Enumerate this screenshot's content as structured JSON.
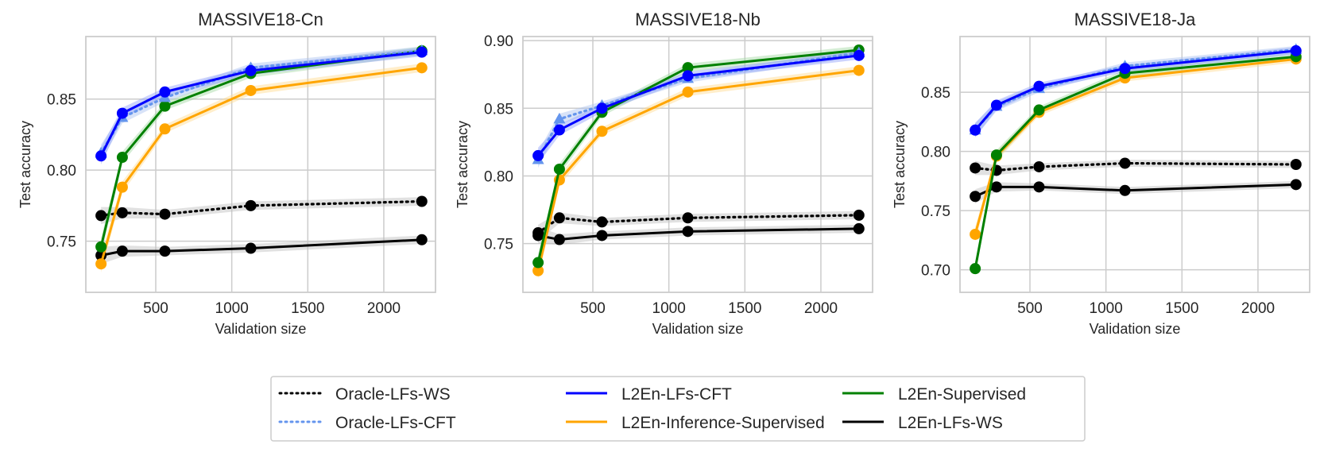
{
  "chart_data": [
    {
      "type": "line",
      "title": "MASSIVE18-Cn",
      "xlabel": "Validation size",
      "ylabel": "Test accuracy",
      "xlim": [
        40,
        2340
      ],
      "ylim": [
        0.714,
        0.894
      ],
      "xticks": [
        500,
        1000,
        1500,
        2000
      ],
      "yticks": [
        0.75,
        0.8,
        0.85
      ],
      "ytick_labels": [
        "0.75",
        "0.80",
        "0.85"
      ],
      "x": [
        140,
        280,
        560,
        1125,
        2250
      ],
      "series": [
        {
          "name": "Oracle-LFs-WS",
          "values": [
            0.768,
            0.77,
            0.769,
            0.775,
            0.778
          ]
        },
        {
          "name": "Oracle-LFs-CFT",
          "values": [
            0.812,
            0.837,
            0.851,
            0.872,
            0.884
          ]
        },
        {
          "name": "L2En-LFs-CFT",
          "values": [
            0.81,
            0.84,
            0.855,
            0.87,
            0.883
          ]
        },
        {
          "name": "L2En-Inference-Supervised",
          "values": [
            0.734,
            0.788,
            0.829,
            0.856,
            0.872
          ]
        },
        {
          "name": "L2En-Supervised",
          "values": [
            0.746,
            0.809,
            0.845,
            0.868,
            0.884
          ]
        },
        {
          "name": "L2En-LFs-WS",
          "values": [
            0.74,
            0.743,
            0.743,
            0.745,
            0.751
          ]
        }
      ]
    },
    {
      "type": "line",
      "title": "MASSIVE18-Nb",
      "xlabel": "Validation size",
      "ylabel": "Test accuracy",
      "xlim": [
        40,
        2340
      ],
      "ylim": [
        0.714,
        0.903
      ],
      "xticks": [
        500,
        1000,
        1500,
        2000
      ],
      "yticks": [
        0.75,
        0.8,
        0.85,
        0.9
      ],
      "ytick_labels": [
        "0.75",
        "0.80",
        "0.85",
        "0.90"
      ],
      "x": [
        140,
        280,
        560,
        1125,
        2250
      ],
      "series": [
        {
          "name": "Oracle-LFs-WS",
          "values": [
            0.758,
            0.769,
            0.766,
            0.769,
            0.771
          ]
        },
        {
          "name": "Oracle-LFs-CFT",
          "values": [
            0.812,
            0.842,
            0.852,
            0.872,
            0.891
          ]
        },
        {
          "name": "L2En-LFs-CFT",
          "values": [
            0.815,
            0.834,
            0.85,
            0.874,
            0.889
          ]
        },
        {
          "name": "L2En-Inference-Supervised",
          "values": [
            0.73,
            0.797,
            0.833,
            0.862,
            0.878
          ]
        },
        {
          "name": "L2En-Supervised",
          "values": [
            0.736,
            0.805,
            0.847,
            0.88,
            0.893
          ]
        },
        {
          "name": "L2En-LFs-WS",
          "values": [
            0.756,
            0.753,
            0.756,
            0.759,
            0.761
          ]
        }
      ]
    },
    {
      "type": "line",
      "title": "MASSIVE18-Ja",
      "xlabel": "Validation size",
      "ylabel": "Test accuracy",
      "xlim": [
        40,
        2340
      ],
      "ylim": [
        0.681,
        0.897
      ],
      "xticks": [
        500,
        1000,
        1500,
        2000
      ],
      "yticks": [
        0.7,
        0.75,
        0.8,
        0.85
      ],
      "ytick_labels": [
        "0.70",
        "0.75",
        "0.80",
        "0.85"
      ],
      "x": [
        140,
        280,
        560,
        1125,
        2250
      ],
      "series": [
        {
          "name": "Oracle-LFs-WS",
          "values": [
            0.786,
            0.784,
            0.787,
            0.79,
            0.789
          ]
        },
        {
          "name": "Oracle-LFs-CFT",
          "values": [
            0.818,
            0.838,
            0.853,
            0.872,
            0.886
          ]
        },
        {
          "name": "L2En-LFs-CFT",
          "values": [
            0.818,
            0.839,
            0.855,
            0.87,
            0.885
          ]
        },
        {
          "name": "L2En-Inference-Supervised",
          "values": [
            0.73,
            0.796,
            0.833,
            0.862,
            0.878
          ]
        },
        {
          "name": "L2En-Supervised",
          "values": [
            0.701,
            0.797,
            0.835,
            0.866,
            0.88
          ]
        },
        {
          "name": "L2En-LFs-WS",
          "values": [
            0.762,
            0.77,
            0.77,
            0.767,
            0.772
          ]
        }
      ]
    }
  ],
  "legend": {
    "location": "bottom-center",
    "entries": [
      {
        "name": "Oracle-LFs-WS",
        "color": "#000000",
        "style": "dotted"
      },
      {
        "name": "Oracle-LFs-CFT",
        "color": "#6495ed",
        "style": "dotted"
      },
      {
        "name": "L2En-LFs-CFT",
        "color": "#0000ff",
        "style": "solid"
      },
      {
        "name": "L2En-Inference-Supervised",
        "color": "#ffa500",
        "style": "solid"
      },
      {
        "name": "L2En-Supervised",
        "color": "#008000",
        "style": "solid"
      },
      {
        "name": "L2En-LFs-WS",
        "color": "#000000",
        "style": "solid"
      }
    ]
  },
  "styles": {
    "Oracle-LFs-WS": {
      "color": "#000000",
      "dash": "dotted",
      "marker": "circle",
      "band": "#bdbdbd"
    },
    "Oracle-LFs-CFT": {
      "color": "#6495ed",
      "dash": "dotted",
      "marker": "triangle",
      "band": "#a9c1f0"
    },
    "L2En-LFs-CFT": {
      "color": "#0000ff",
      "dash": "solid",
      "marker": "circle",
      "band": "#8f9dfa"
    },
    "L2En-Inference-Supervised": {
      "color": "#ffa500",
      "dash": "solid",
      "marker": "circle",
      "band": "#ffd98c"
    },
    "L2En-Supervised": {
      "color": "#008000",
      "dash": "solid",
      "marker": "circle",
      "band": "#9fd89f"
    },
    "L2En-LFs-WS": {
      "color": "#000000",
      "dash": "solid",
      "marker": "circle",
      "band": "#bdbdbd"
    }
  },
  "colors": {
    "grid": "#cccccc",
    "frame": "#cccccc",
    "text": "#262626"
  }
}
